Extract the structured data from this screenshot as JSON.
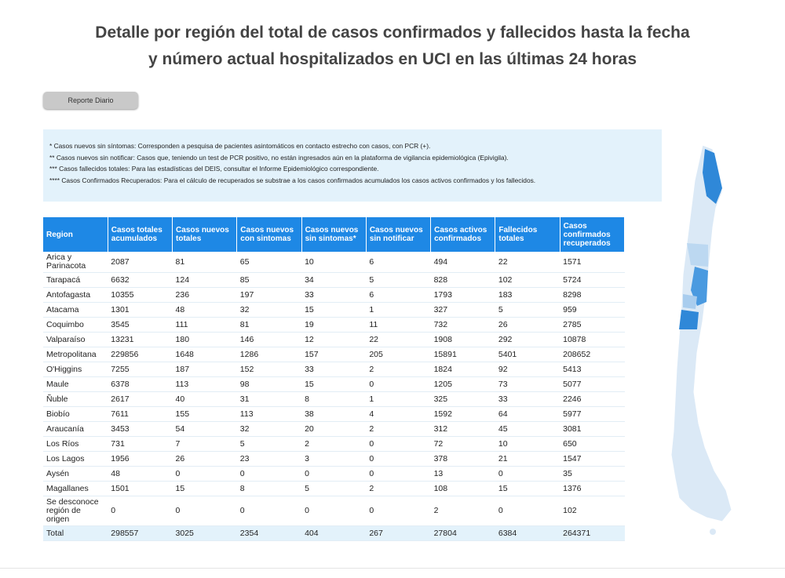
{
  "header": {
    "title_lines": [
      "Detalle por región del total de casos confirmados y fallecidos hasta la fecha",
      "y número actual hospitalizados en UCI en las últimas 24 horas"
    ],
    "button": "Reporte Diario"
  },
  "notes": [
    "* Casos nuevos sin síntomas: Corresponden a pesquisa de pacientes asintomáticos en contacto estrecho con casos, con PCR (+).",
    "** Casos nuevos sin notificar: Casos que, teniendo un test de PCR positivo, no están ingresados aún en la plataforma de vigilancia epidemiológica (Epivigila).",
    "*** Casos fallecidos totales: Para las estadísticas del DEIS, consultar el Informe Epidemiológico correspondiente.",
    "**** Casos Confirmados Recuperados: Para el cálculo de recuperados se substrae a los casos confirmados acumulados los casos activos confirmados y los fallecidos."
  ],
  "table": {
    "columns": [
      "Region",
      "Casos totales acumulados",
      "Casos nuevos totales",
      "Casos nuevos con sintomas",
      "Casos nuevos sin sintomas*",
      "Casos nuevos sin notificar",
      "Casos activos confirmados",
      "Fallecidos totales",
      "Casos confirmados recuperados"
    ],
    "rows": [
      [
        "Arica y Parinacota",
        2087,
        81,
        65,
        10,
        6,
        494,
        22,
        1571
      ],
      [
        "Tarapacá",
        6632,
        124,
        85,
        34,
        5,
        828,
        102,
        5724
      ],
      [
        "Antofagasta",
        10355,
        236,
        197,
        33,
        6,
        1793,
        183,
        8298
      ],
      [
        "Atacama",
        1301,
        48,
        32,
        15,
        1,
        327,
        5,
        959
      ],
      [
        "Coquimbo",
        3545,
        111,
        81,
        19,
        11,
        732,
        26,
        2785
      ],
      [
        "Valparaíso",
        13231,
        180,
        146,
        12,
        22,
        1908,
        292,
        10878
      ],
      [
        "Metropolitana",
        229856,
        1648,
        1286,
        157,
        205,
        15891,
        5401,
        208652
      ],
      [
        "O'Higgins",
        7255,
        187,
        152,
        33,
        2,
        1824,
        92,
        5413
      ],
      [
        "Maule",
        6378,
        113,
        98,
        15,
        0,
        1205,
        73,
        5077
      ],
      [
        "Ñuble",
        2617,
        40,
        31,
        8,
        1,
        325,
        33,
        2246
      ],
      [
        "Biobío",
        7611,
        155,
        113,
        38,
        4,
        1592,
        64,
        5977
      ],
      [
        "Araucanía",
        3453,
        54,
        32,
        20,
        2,
        312,
        45,
        3081
      ],
      [
        "Los Ríos",
        731,
        7,
        5,
        2,
        0,
        72,
        10,
        650
      ],
      [
        "Los Lagos",
        1956,
        26,
        23,
        3,
        0,
        378,
        21,
        1547
      ],
      [
        "Aysén",
        48,
        0,
        0,
        0,
        0,
        13,
        0,
        35
      ],
      [
        "Magallanes",
        1501,
        15,
        8,
        5,
        2,
        108,
        15,
        1376
      ],
      [
        "Se desconoce región de origen",
        0,
        0,
        0,
        0,
        0,
        2,
        0,
        102
      ],
      [
        "Total",
        298557,
        3025,
        2354,
        404,
        267,
        27804,
        6384,
        264371
      ]
    ]
  }
}
